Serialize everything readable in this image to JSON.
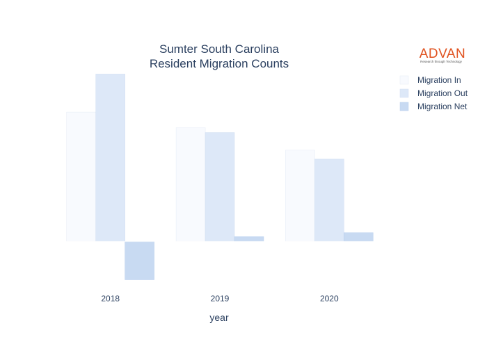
{
  "chart_data": {
    "type": "bar",
    "title": [
      "Sumter South Carolina",
      "Resident Migration Counts"
    ],
    "xlabel": "year",
    "ylabel": "",
    "categories": [
      "2018",
      "2019",
      "2020"
    ],
    "series": [
      {
        "name": "Migration In",
        "color": "#f8fafe",
        "stroke": "#e4ebf5",
        "values": [
          2650,
          2330,
          1870
        ]
      },
      {
        "name": "Migration Out",
        "color": "#dde8f8",
        "stroke": "#d0ddf2",
        "values": [
          3430,
          2230,
          1690
        ]
      },
      {
        "name": "Migration Net",
        "color": "#c8daf2",
        "stroke": "#b9cfee",
        "values": [
          -780,
          100,
          180
        ]
      }
    ],
    "ylim": [
      -900,
      3450
    ],
    "grid": false,
    "legend_position": "top-right"
  },
  "logo": {
    "name": "ADVAN",
    "tagline": "Research through Technology"
  }
}
